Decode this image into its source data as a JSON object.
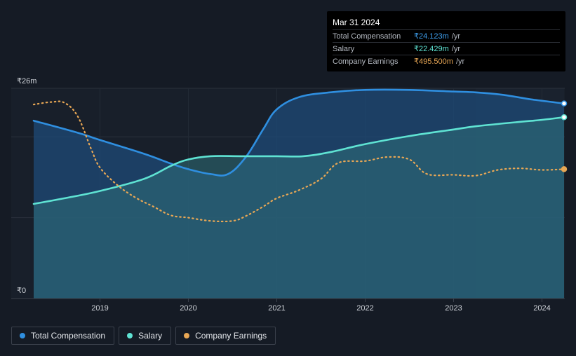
{
  "tooltip": {
    "title": "Mar 31 2024",
    "rows": [
      {
        "label": "Total Compensation",
        "value": "₹24.123m",
        "unit": "/yr",
        "color": "#3fa0ef"
      },
      {
        "label": "Salary",
        "value": "₹22.429m",
        "unit": "/yr",
        "color": "#5fe3d3"
      },
      {
        "label": "Company Earnings",
        "value": "₹495.500m",
        "unit": "/yr",
        "color": "#e8a755"
      }
    ]
  },
  "legend": [
    {
      "label": "Total Compensation",
      "color": "#2f8fe0"
    },
    {
      "label": "Salary",
      "color": "#5fe3d3"
    },
    {
      "label": "Company Earnings",
      "color": "#e8a755"
    }
  ],
  "chart_data": {
    "type": "line",
    "y_axis": {
      "top_label": "₹26m",
      "bottom_label": "₹0",
      "ylim": [
        0,
        26
      ]
    },
    "x_ticks": [
      "2019",
      "2020",
      "2021",
      "2022",
      "2023",
      "2024"
    ],
    "x_tick_values": [
      2019.0,
      2020.0,
      2021.0,
      2022.0,
      2023.0,
      2024.0
    ],
    "xlim": [
      2018.25,
      2024.25
    ],
    "forecast_start": 2023.25,
    "series": [
      {
        "name": "Total Compensation",
        "color": "#2f8fe0",
        "points": [
          [
            2018.25,
            22.0
          ],
          [
            2018.75,
            20.5
          ],
          [
            2019.0,
            19.6
          ],
          [
            2019.5,
            17.9
          ],
          [
            2019.8,
            16.7
          ],
          [
            2020.0,
            16.0
          ],
          [
            2020.25,
            15.4
          ],
          [
            2020.45,
            15.4
          ],
          [
            2020.65,
            17.5
          ],
          [
            2020.85,
            21.0
          ],
          [
            2021.0,
            23.4
          ],
          [
            2021.25,
            24.9
          ],
          [
            2021.6,
            25.5
          ],
          [
            2022.0,
            25.8
          ],
          [
            2022.5,
            25.8
          ],
          [
            2023.0,
            25.6
          ],
          [
            2023.25,
            25.5
          ],
          [
            2023.55,
            25.2
          ],
          [
            2023.9,
            24.6
          ],
          [
            2024.25,
            24.123
          ]
        ]
      },
      {
        "name": "Salary",
        "color": "#5fe3d3",
        "points": [
          [
            2018.25,
            11.7
          ],
          [
            2018.6,
            12.4
          ],
          [
            2019.0,
            13.3
          ],
          [
            2019.5,
            14.8
          ],
          [
            2019.8,
            16.4
          ],
          [
            2020.0,
            17.2
          ],
          [
            2020.25,
            17.6
          ],
          [
            2020.6,
            17.6
          ],
          [
            2021.0,
            17.6
          ],
          [
            2021.3,
            17.6
          ],
          [
            2021.6,
            18.1
          ],
          [
            2022.0,
            19.1
          ],
          [
            2022.5,
            20.1
          ],
          [
            2023.0,
            20.9
          ],
          [
            2023.25,
            21.3
          ],
          [
            2023.7,
            21.8
          ],
          [
            2024.0,
            22.1
          ],
          [
            2024.25,
            22.429
          ]
        ]
      },
      {
        "name": "Company Earnings",
        "color": "#e8a755",
        "points": [
          [
            2018.25,
            24.0
          ],
          [
            2018.45,
            24.3
          ],
          [
            2018.6,
            24.2
          ],
          [
            2018.75,
            22.5
          ],
          [
            2018.9,
            18.5
          ],
          [
            2019.0,
            16.2
          ],
          [
            2019.2,
            14.0
          ],
          [
            2019.4,
            12.5
          ],
          [
            2019.6,
            11.4
          ],
          [
            2019.8,
            10.3
          ],
          [
            2020.0,
            10.0
          ],
          [
            2020.25,
            9.6
          ],
          [
            2020.5,
            9.6
          ],
          [
            2020.65,
            10.2
          ],
          [
            2020.85,
            11.4
          ],
          [
            2021.0,
            12.4
          ],
          [
            2021.25,
            13.4
          ],
          [
            2021.5,
            14.8
          ],
          [
            2021.7,
            16.8
          ],
          [
            2022.0,
            17.0
          ],
          [
            2022.25,
            17.5
          ],
          [
            2022.5,
            17.2
          ],
          [
            2022.7,
            15.4
          ],
          [
            2023.0,
            15.3
          ],
          [
            2023.25,
            15.2
          ],
          [
            2023.5,
            15.9
          ],
          [
            2023.75,
            16.1
          ],
          [
            2024.0,
            15.9
          ],
          [
            2024.25,
            16.0
          ]
        ]
      }
    ]
  }
}
